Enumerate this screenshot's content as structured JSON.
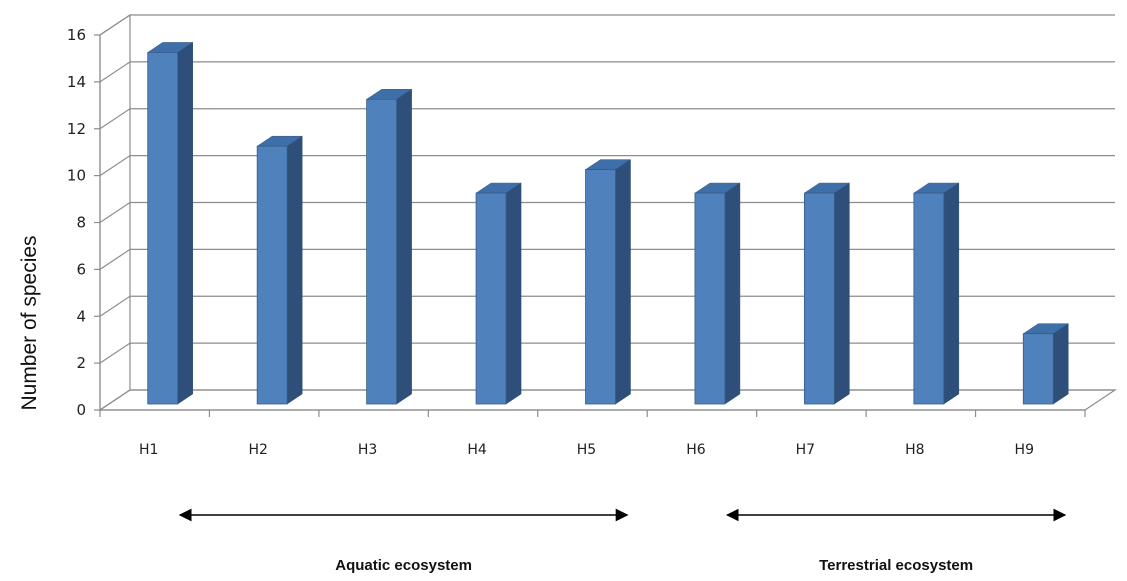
{
  "chart_data": {
    "type": "bar",
    "categories": [
      "H1",
      "H2",
      "H3",
      "H4",
      "H5",
      "H6",
      "H7",
      "H8",
      "H9"
    ],
    "values": [
      15,
      11,
      13,
      9,
      10,
      9,
      9,
      9,
      3
    ],
    "ylabel": "Number of species",
    "xlabel": "",
    "ylim": [
      0,
      16
    ],
    "yticks": [
      "0",
      "2",
      "4",
      "6",
      "8",
      "10",
      "12",
      "14",
      "16"
    ],
    "grid": true,
    "bar_color": "#4F81BD",
    "groups": [
      {
        "label": "Aquatic ecosystem",
        "categories": [
          "H1",
          "H2",
          "H3",
          "H4",
          "H5"
        ]
      },
      {
        "label": "Terrestrial ecosystem",
        "categories": [
          "H6",
          "H7",
          "H8",
          "H9"
        ]
      }
    ]
  }
}
